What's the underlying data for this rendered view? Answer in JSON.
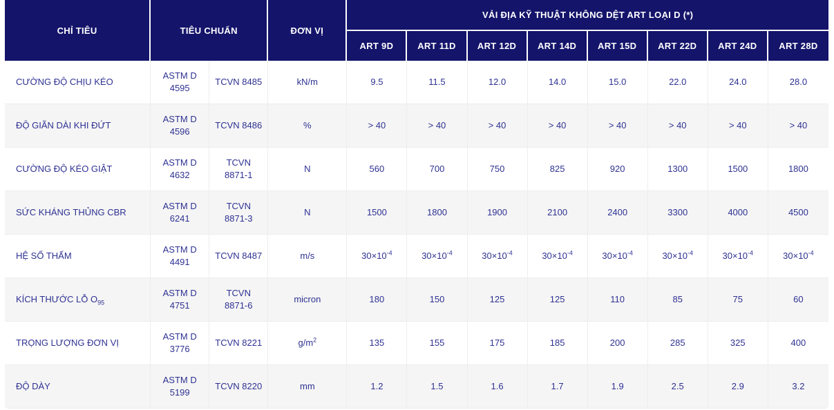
{
  "table": {
    "header": {
      "col_chi_tieu": "CHỈ TIÊU",
      "col_tieu_chuan": "TIÊU CHUẨN",
      "col_don_vi": "ĐƠN VỊ",
      "group_title": "VẢI ĐỊA KỸ THUẬT KHÔNG DỆT ART LOẠI D (*)",
      "products": [
        "ART 9D",
        "ART 11D",
        "ART 12D",
        "ART 14D",
        "ART 15D",
        "ART 22D",
        "ART 24D",
        "ART 28D"
      ]
    },
    "rows": [
      {
        "label": "CƯỜNG ĐỘ CHỊU KÉO",
        "astm": "ASTM D 4595",
        "tcvn": "TCVN 8485",
        "unit": "kN/m",
        "values": [
          "9.5",
          "11.5",
          "12.0",
          "14.0",
          "15.0",
          "22.0",
          "24.0",
          "28.0"
        ]
      },
      {
        "label": "ĐỘ GIÃN DÀI KHI ĐỨT",
        "astm": "ASTM D 4596",
        "tcvn": "TCVN 8486",
        "unit": "%",
        "values": [
          "> 40",
          "> 40",
          "> 40",
          "> 40",
          "> 40",
          "> 40",
          "> 40",
          "> 40"
        ]
      },
      {
        "label": "CƯỜNG ĐỘ KÉO GIẬT",
        "astm": "ASTM D 4632",
        "tcvn": "TCVN 8871-1",
        "unit": "N",
        "values": [
          "560",
          "700",
          "750",
          "825",
          "920",
          "1300",
          "1500",
          "1800"
        ]
      },
      {
        "label": "SỨC KHÁNG THỦNG CBR",
        "astm": "ASTM D 6241",
        "tcvn": "TCVN 8871-3",
        "unit": "N",
        "values": [
          "1500",
          "1800",
          "1900",
          "2100",
          "2400",
          "3300",
          "4000",
          "4500"
        ]
      },
      {
        "label": "HỆ SỐ THẤM",
        "astm": "ASTM D 4491",
        "tcvn": "TCVN 8487",
        "unit": "m/s",
        "values": [
          "30×10^-4",
          "30×10^-4",
          "30×10^-4",
          "30×10^-4",
          "30×10^-4",
          "30×10^-4",
          "30×10^-4",
          "30×10^-4"
        ]
      },
      {
        "label": "KÍCH THƯỚC LỖ O_95",
        "astm": "ASTM D 4751",
        "tcvn": "TCVN 8871-6",
        "unit": "micron",
        "values": [
          "180",
          "150",
          "125",
          "125",
          "110",
          "85",
          "75",
          "60"
        ]
      },
      {
        "label": "TRỌNG LƯỢNG ĐƠN VỊ",
        "astm": "ASTM D 3776",
        "tcvn": "TCVN 8221",
        "unit": "g/m^2",
        "values": [
          "135",
          "155",
          "175",
          "185",
          "200",
          "285",
          "325",
          "400"
        ]
      },
      {
        "label": "ĐỘ DÀY",
        "astm": "ASTM D 5199",
        "tcvn": "TCVN 8220",
        "unit": "mm",
        "values": [
          "1.2",
          "1.5",
          "1.6",
          "1.7",
          "1.9",
          "2.5",
          "2.9",
          "3.2"
        ]
      }
    ]
  },
  "colors": {
    "header_bg": "#14146b",
    "body_text": "#2e3192",
    "stripe_bg": "#f5f5f5",
    "border": "#ededed"
  }
}
